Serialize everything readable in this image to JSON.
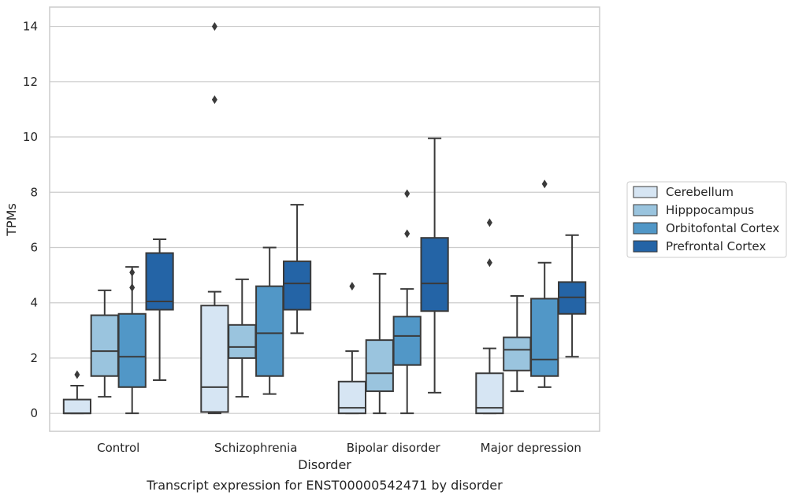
{
  "chart_data": {
    "type": "box",
    "caption": "Transcript expression for ENST00000542471 by disorder",
    "xlabel": "Disorder",
    "ylabel": "TPMs",
    "ylim": [
      -0.65,
      14.7
    ],
    "yticks": [
      0,
      2,
      4,
      6,
      8,
      10,
      12,
      14
    ],
    "grid": "horizontal",
    "legend_position": "right",
    "categories": [
      "Control",
      "Schizophrenia",
      "Bipolar disorder",
      "Major depression"
    ],
    "series": [
      {
        "name": "Cerebellum",
        "color": "#d6e5f3",
        "boxes": [
          {
            "whislo": 0,
            "q1": 0,
            "med": 0,
            "q3": 0.5,
            "whishi": 1.0,
            "fliers": [
              1.4
            ]
          },
          {
            "whislo": 0,
            "q1": 0.05,
            "med": 0.95,
            "q3": 3.9,
            "whishi": 4.4,
            "fliers": [
              11.35,
              14.0
            ]
          },
          {
            "whislo": 0,
            "q1": 0,
            "med": 0.2,
            "q3": 1.15,
            "whishi": 2.25,
            "fliers": [
              4.6
            ]
          },
          {
            "whislo": 0,
            "q1": 0,
            "med": 0.2,
            "q3": 1.45,
            "whishi": 2.35,
            "fliers": [
              5.45,
              6.9
            ]
          }
        ]
      },
      {
        "name": "Hipppocampus",
        "color": "#9ac4de",
        "boxes": [
          {
            "whislo": 0.6,
            "q1": 1.35,
            "med": 2.25,
            "q3": 3.55,
            "whishi": 4.45,
            "fliers": []
          },
          {
            "whislo": 0.6,
            "q1": 2.0,
            "med": 2.4,
            "q3": 3.2,
            "whishi": 4.85,
            "fliers": []
          },
          {
            "whislo": 0,
            "q1": 0.8,
            "med": 1.45,
            "q3": 2.65,
            "whishi": 5.05,
            "fliers": []
          },
          {
            "whislo": 0.8,
            "q1": 1.55,
            "med": 2.3,
            "q3": 2.75,
            "whishi": 4.25,
            "fliers": []
          }
        ]
      },
      {
        "name": "Orbitofontal Cortex",
        "color": "#5197c7",
        "boxes": [
          {
            "whislo": 0,
            "q1": 0.95,
            "med": 2.05,
            "q3": 3.6,
            "whishi": 5.3,
            "fliers": [
              4.55,
              5.1
            ]
          },
          {
            "whislo": 0.7,
            "q1": 1.35,
            "med": 2.9,
            "q3": 4.6,
            "whishi": 6.0,
            "fliers": []
          },
          {
            "whislo": 0,
            "q1": 1.75,
            "med": 2.8,
            "q3": 3.5,
            "whishi": 4.5,
            "fliers": [
              6.5,
              7.95
            ]
          },
          {
            "whislo": 0.95,
            "q1": 1.35,
            "med": 1.95,
            "q3": 4.15,
            "whishi": 5.45,
            "fliers": [
              8.3
            ]
          }
        ]
      },
      {
        "name": "Prefrontal Cortex",
        "color": "#2464a6",
        "boxes": [
          {
            "whislo": 1.2,
            "q1": 3.75,
            "med": 4.05,
            "q3": 5.8,
            "whishi": 6.3,
            "fliers": []
          },
          {
            "whislo": 2.9,
            "q1": 3.75,
            "med": 4.7,
            "q3": 5.5,
            "whishi": 7.55,
            "fliers": []
          },
          {
            "whislo": 0.75,
            "q1": 3.7,
            "med": 4.7,
            "q3": 6.35,
            "whishi": 9.95,
            "fliers": []
          },
          {
            "whislo": 2.05,
            "q1": 3.6,
            "med": 4.2,
            "q3": 4.75,
            "whishi": 6.45,
            "fliers": []
          }
        ]
      }
    ]
  }
}
